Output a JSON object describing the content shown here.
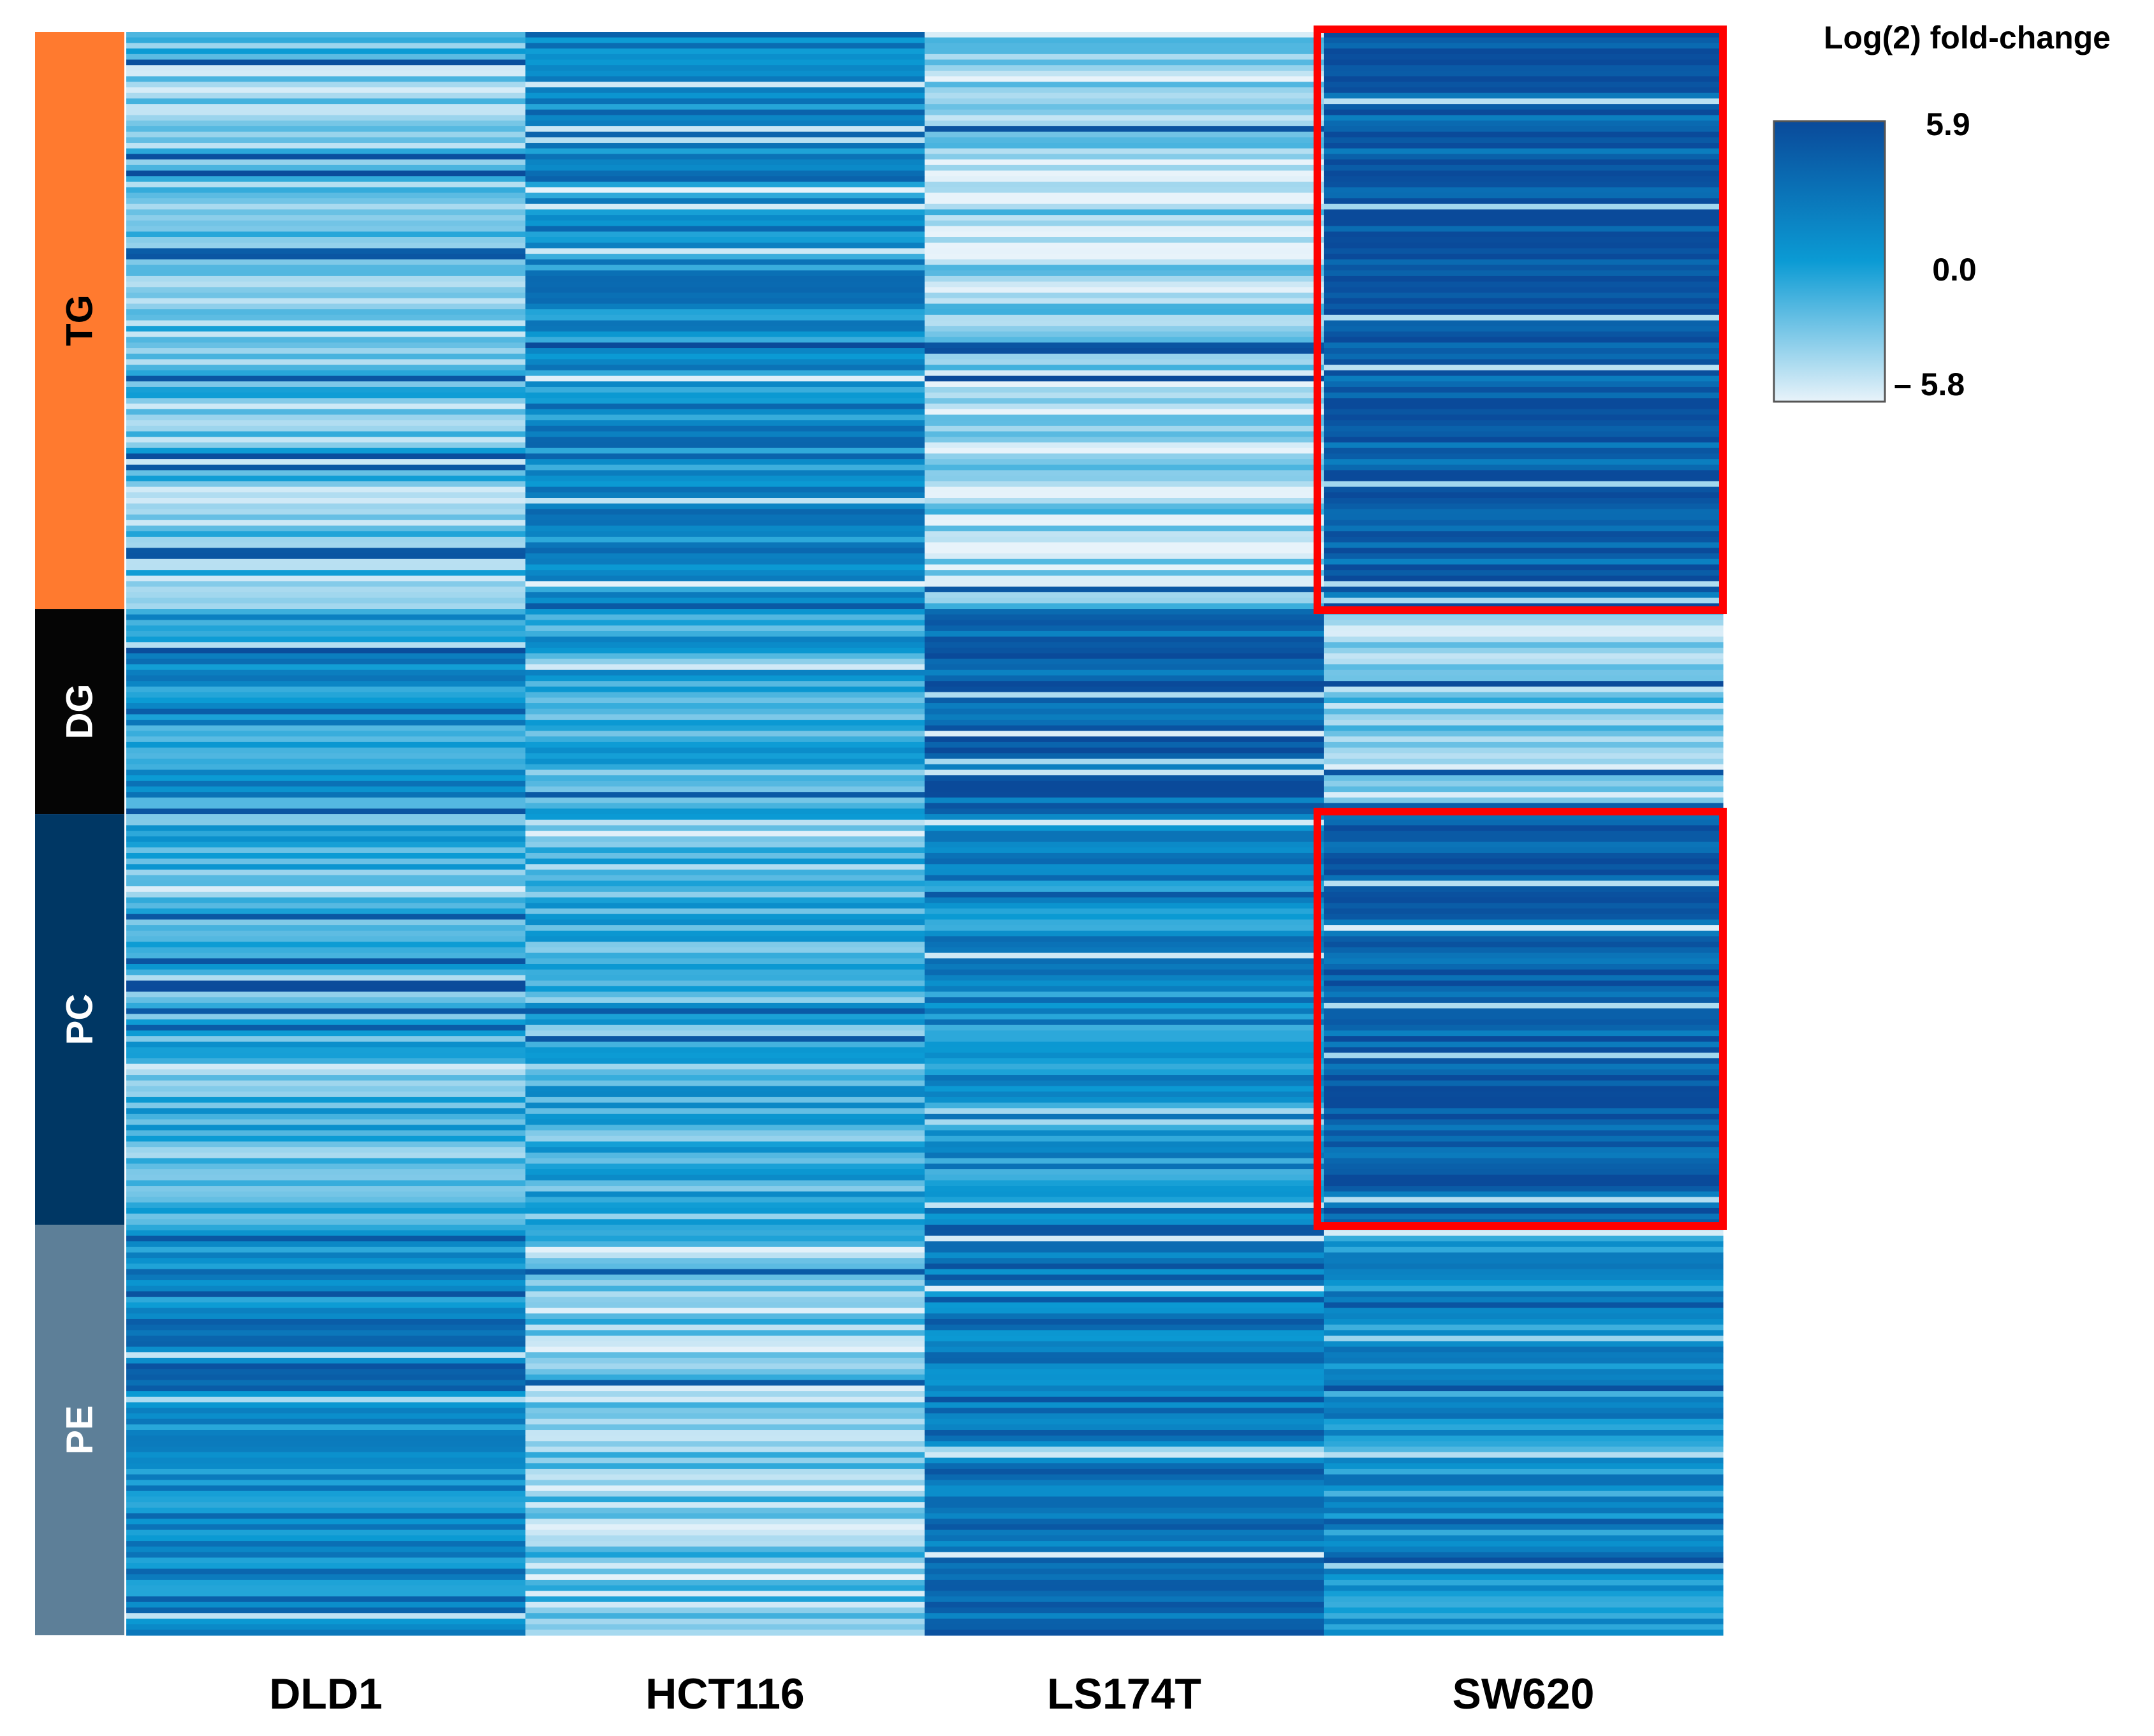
{
  "chart_data": {
    "type": "heatmap",
    "title": "",
    "xlabel": "",
    "ylabel": "",
    "columns": [
      "DLD1",
      "HCT116",
      "LS174T",
      "SW620"
    ],
    "row_groups": [
      {
        "label": "TG",
        "color": "#ff7a2f",
        "text_color": "#000000",
        "rows": 104
      },
      {
        "label": "DG",
        "color": "#050505",
        "text_color": "#ffffff",
        "rows": 37
      },
      {
        "label": "PC",
        "color": "#003764",
        "text_color": "#ffffff",
        "rows": 74
      },
      {
        "label": "PE",
        "color": "#5d7f98",
        "text_color": "#ffffff",
        "rows": 74
      }
    ],
    "group_means": {
      "TG": [
        -2.6,
        1.4,
        -3.6,
        4.6
      ],
      "DG": [
        0.6,
        -0.8,
        4.2,
        -3.3
      ],
      "PC": [
        -1.6,
        -1.2,
        1.0,
        4.6
      ],
      "PE": [
        1.8,
        -3.0,
        2.6,
        0.9
      ]
    },
    "colorbar": {
      "title": "Log(2) fold-change",
      "max": 5.9,
      "mid": 0.0,
      "min": -5.8,
      "max_label": "5.9",
      "mid_label": "0.0",
      "min_label": "– 5.8",
      "colors": [
        "#e8f3fa",
        "#0b9bd4",
        "#0a4a9a"
      ]
    },
    "highlights": [
      {
        "column": "SW620",
        "group": "TG",
        "color": "#ff0000"
      },
      {
        "column": "SW620",
        "group": "PC",
        "color": "#ff0000"
      }
    ]
  }
}
